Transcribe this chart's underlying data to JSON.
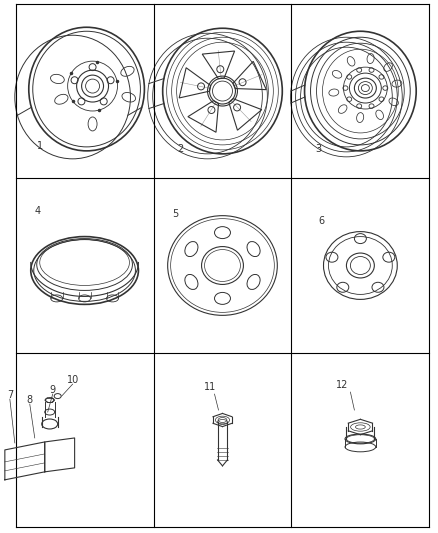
{
  "figure_width": 4.38,
  "figure_height": 5.33,
  "dpi": 100,
  "background_color": "#ffffff",
  "line_color": "#333333",
  "label_fontsize": 7,
  "grid_lw": 0.8
}
